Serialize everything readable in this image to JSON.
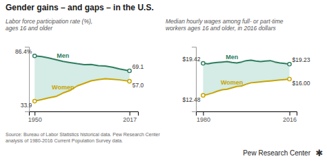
{
  "title": "Gender gains – and gaps – in the U.S.",
  "annotations": [
    "Source: Bureau of Labor Statistics historical data. Pew Research Center\nanalysis of 1980-2016 Current Population Survey data.",
    "Pew Research Center",
    "✱"
  ],
  "chart_data": [
    {
      "type": "line",
      "subtitle": "Labor force participation rate (%),\nages 16 and older",
      "x": [
        1950,
        1955,
        1960,
        1965,
        1970,
        1975,
        1980,
        1985,
        1990,
        1995,
        2000,
        2005,
        2010,
        2017
      ],
      "color": "#d4ebe6",
      "series": [
        {
          "name": "Men",
          "color": "#2e7d5e",
          "marker": "circle",
          "values": [
            86.4,
            85.6,
            84.0,
            82.0,
            80.0,
            78.7,
            77.4,
            76.3,
            76.4,
            75.0,
            74.7,
            73.3,
            71.2,
            69.1
          ],
          "value_labels": [
            "86.4%",
            null,
            null,
            null,
            null,
            null,
            null,
            null,
            null,
            null,
            null,
            null,
            null,
            "69.1"
          ]
        },
        {
          "name": "Women",
          "color": "#c8a400",
          "marker": "circle",
          "values": [
            33.9,
            35.7,
            37.7,
            39.3,
            43.3,
            46.3,
            51.5,
            54.5,
            57.5,
            58.9,
            59.9,
            59.3,
            58.6,
            57.0
          ],
          "value_labels": [
            "33.9",
            null,
            null,
            null,
            null,
            null,
            null,
            null,
            null,
            null,
            null,
            null,
            null,
            "57.0"
          ]
        }
      ],
      "xlim": [
        1946,
        2023
      ],
      "ylim": [
        22,
        97
      ],
      "xticks": [
        1950,
        2017
      ],
      "tick_labels": "x",
      "grid": false,
      "data_labels": true
    },
    {
      "type": "line",
      "subtitle": "Median hourly wages among full- or part-time\nworkers ages 16 and older, in 2016 dollars",
      "x": [
        1980,
        1982,
        1984,
        1986,
        1988,
        1990,
        1992,
        1994,
        1996,
        1998,
        2000,
        2002,
        2004,
        2006,
        2008,
        2010,
        2012,
        2014,
        2016
      ],
      "color": "#d4ebe6",
      "series": [
        {
          "name": "Men",
          "color": "#2e7d5e",
          "marker": "circle",
          "values": [
            19.42,
            19.3,
            19.5,
            19.6,
            19.7,
            19.8,
            19.6,
            19.5,
            19.7,
            20.0,
            20.1,
            19.9,
            19.8,
            19.9,
            20.0,
            19.7,
            19.5,
            19.4,
            19.23
          ],
          "value_labels": [
            "$19.42",
            null,
            null,
            null,
            null,
            null,
            null,
            null,
            null,
            null,
            null,
            null,
            null,
            null,
            null,
            null,
            null,
            null,
            "$19.23"
          ]
        },
        {
          "name": "Women",
          "color": "#c8a400",
          "marker": "circle",
          "values": [
            12.48,
            12.7,
            13.0,
            13.4,
            13.7,
            13.8,
            14.1,
            14.4,
            14.5,
            14.9,
            15.2,
            15.3,
            15.4,
            15.5,
            15.6,
            15.7,
            15.8,
            15.9,
            16.0
          ],
          "value_labels": [
            "$12.48",
            null,
            null,
            null,
            null,
            null,
            null,
            null,
            null,
            null,
            null,
            null,
            null,
            null,
            null,
            null,
            null,
            null,
            "$16.00"
          ]
        }
      ],
      "xlim": [
        1977,
        2019
      ],
      "ylim": [
        9,
        23
      ],
      "xticks": [
        1980,
        2016
      ],
      "tick_labels": "x",
      "grid": false,
      "data_labels": true
    }
  ]
}
